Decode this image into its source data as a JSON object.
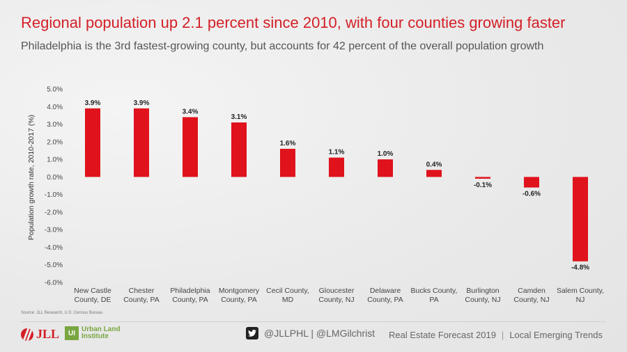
{
  "title": "Regional population up 2.1 percent since 2010, with four counties growing faster",
  "subtitle": "Philadelphia is the 3rd fastest-growing county, but accounts for 42 percent of the overall population growth",
  "source": "Source: JLL Research, U.S. Census Bureau",
  "footer": {
    "jll_logo_text": "JLL",
    "uli_logo_mark": "UI",
    "uli_logo_line1": "Urban Land",
    "uli_logo_line2": "Institute",
    "social_handles": "@JLLPHL | @LMGilchrist",
    "forecast_title": "Real Estate Forecast 2019",
    "forecast_separator": "|",
    "forecast_section": "Local Emerging Trends"
  },
  "colors": {
    "bar": "#e0121b",
    "title": "#d31f26",
    "text": "#444444"
  },
  "chart_data": {
    "type": "bar",
    "title": "Regional population up 2.1 percent since 2010, with four counties growing faster",
    "subtitle": "Philadelphia is the 3rd fastest-growing county, but accounts for 42 percent of the overall population growth",
    "xlabel": "",
    "ylabel": "Population growth rate, 2010-2017 (%)",
    "ylim": [
      -6,
      5
    ],
    "yticks": [
      "5.0%",
      "4.0%",
      "3.0%",
      "2.0%",
      "1.0%",
      "0.0%",
      "-1.0%",
      "-2.0%",
      "-3.0%",
      "-4.0%",
      "-5.0%",
      "-6.0%"
    ],
    "ytick_values": [
      5,
      4,
      3,
      2,
      1,
      0,
      -1,
      -2,
      -3,
      -4,
      -5,
      -6
    ],
    "grid": false,
    "categories": [
      [
        "New Castle",
        "County, DE"
      ],
      [
        "Chester",
        "County, PA"
      ],
      [
        "Philadelphia",
        "County, PA"
      ],
      [
        "Montgomery",
        "County, PA"
      ],
      [
        "Cecil County,",
        "MD"
      ],
      [
        "Gloucester",
        "County, NJ"
      ],
      [
        "Delaware",
        "County, PA"
      ],
      [
        "Bucks County,",
        "PA"
      ],
      [
        "Burlington",
        "County, NJ"
      ],
      [
        "Camden",
        "County, NJ"
      ],
      [
        "Salem County,",
        "NJ"
      ]
    ],
    "values": [
      3.9,
      3.9,
      3.4,
      3.1,
      1.6,
      1.1,
      1.0,
      0.4,
      -0.1,
      -0.6,
      -4.8
    ],
    "data_labels": [
      "3.9%",
      "3.9%",
      "3.4%",
      "3.1%",
      "1.6%",
      "1.1%",
      "1.0%",
      "0.4%",
      "-0.1%",
      "-0.6%",
      "-4.8%"
    ]
  }
}
